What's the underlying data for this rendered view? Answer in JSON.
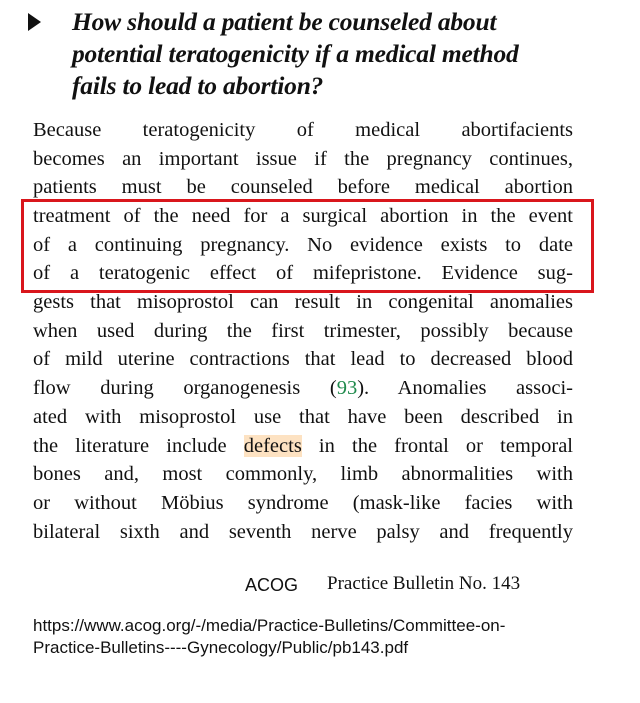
{
  "heading": {
    "icon": "triangle-bullet-icon",
    "lines": [
      "How should a patient be counseled about",
      "potential teratogenicity if a medical method",
      "fails to lead to abortion?"
    ]
  },
  "body": {
    "lines": [
      "Because teratogenicity of medical abortifacients",
      "becomes an important issue if the pregnancy continues,",
      "patients must be counseled before medical abortion",
      "treatment of the need for a surgical abortion in the event",
      "of a continuing pregnancy. No evidence exists to date",
      "of a teratogenic effect of mifepristone. Evidence sug-",
      "gests that misoprostol can result in congenital anomalies",
      "when used during the first trimester, possibly because",
      "of mild uterine contractions that lead to decreased blood",
      "ated with misoprostol use that have been described in",
      "bones and, most commonly, limb abnormalities with",
      "or without Möbius syndrome (mask-like facies with",
      "bilateral sixth and seventh nerve palsy and frequently"
    ],
    "line10": {
      "before": "flow during organogenesis (",
      "ref": "93",
      "after": "). Anomalies associ-"
    },
    "line12": {
      "before": "the literature include ",
      "highlight": "defects",
      "after": " in the frontal or temporal"
    }
  },
  "colors": {
    "highlight_box": "#d9161c",
    "reference_link": "#1f8a4c",
    "word_highlight": "#fde2c2"
  },
  "footer": {
    "org": "ACOG",
    "bulletin": "Practice Bulletin No. 143",
    "url_lines": [
      "https://www.acog.org/-/media/Practice-Bulletins/Committee-on-",
      "Practice-Bulletins----Gynecology/Public/pb143.pdf"
    ]
  }
}
